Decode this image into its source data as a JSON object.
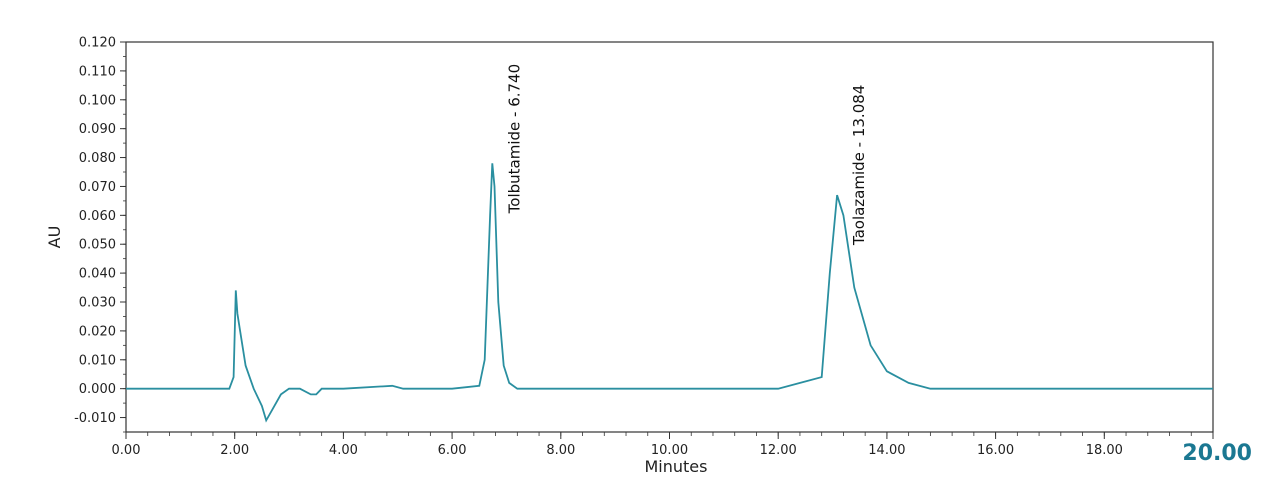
{
  "chart_data": {
    "type": "line",
    "xlabel": "Minutes",
    "ylabel": "AU",
    "xlim": [
      0,
      20
    ],
    "ylim": [
      -0.015,
      0.12
    ],
    "x_ticks": [
      "0.00",
      "2.00",
      "4.00",
      "6.00",
      "8.00",
      "10.00",
      "12.00",
      "14.00",
      "16.00",
      "18.00",
      "20.00"
    ],
    "y_ticks": [
      "-0.010",
      "0.000",
      "0.010",
      "0.020",
      "0.030",
      "0.040",
      "0.050",
      "0.060",
      "0.070",
      "0.080",
      "0.090",
      "0.100",
      "0.110",
      "0.120"
    ],
    "end_label": "20.00",
    "grid": false,
    "line_color": "#2a8fa0",
    "end_label_color": "#1b7892",
    "series": [
      {
        "values_description": "chromatogram trace",
        "x": [
          0.0,
          1.9,
          1.98,
          2.02,
          2.05,
          2.1,
          2.2,
          2.35,
          2.5,
          2.58,
          2.7,
          2.85,
          3.0,
          3.2,
          3.4,
          3.5,
          3.6,
          4.0,
          4.9,
          5.1,
          6.0,
          6.5,
          6.6,
          6.7,
          6.74,
          6.78,
          6.85,
          6.95,
          7.05,
          7.2,
          8.0,
          12.0,
          12.8,
          12.95,
          13.084,
          13.2,
          13.4,
          13.7,
          14.0,
          14.4,
          14.8,
          16.0,
          18.0,
          20.0
        ],
        "y": [
          0.0,
          0.0,
          0.004,
          0.034,
          0.026,
          0.02,
          0.008,
          0.0,
          -0.006,
          -0.011,
          -0.007,
          -0.002,
          0.0,
          0.0,
          -0.002,
          -0.002,
          0.0,
          0.0,
          0.001,
          0.0,
          0.0,
          0.001,
          0.01,
          0.06,
          0.078,
          0.07,
          0.03,
          0.008,
          0.002,
          0.0,
          0.0,
          0.0,
          0.004,
          0.04,
          0.067,
          0.06,
          0.035,
          0.015,
          0.006,
          0.002,
          0.0,
          0.0,
          0.0,
          0.0
        ]
      }
    ],
    "annotations": [
      {
        "text": "Tolbutamide - 6.740",
        "x": 6.74,
        "y": 0.078
      },
      {
        "text": "Taolazamide - 13.084",
        "x": 13.084,
        "y": 0.067
      }
    ]
  }
}
